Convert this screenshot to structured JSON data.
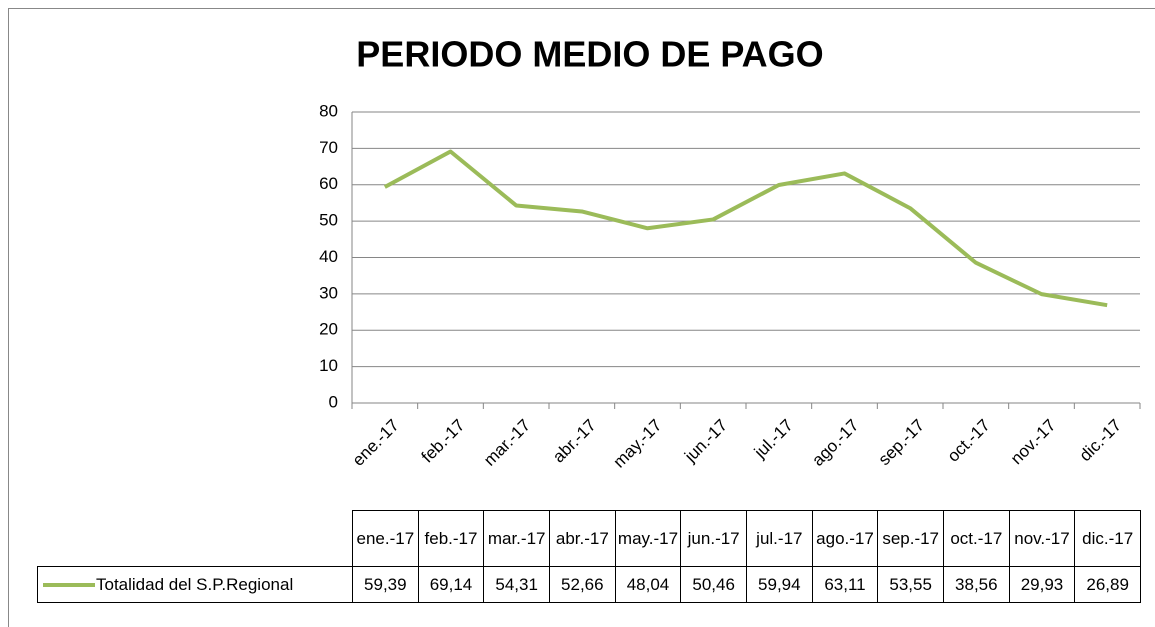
{
  "chart_data": {
    "type": "line",
    "title": "PERIODO MEDIO DE PAGO",
    "categories": [
      "ene.-17",
      "feb.-17",
      "mar.-17",
      "abr.-17",
      "may.-17",
      "jun.-17",
      "jul.-17",
      "ago.-17",
      "sep.-17",
      "oct.-17",
      "nov.-17",
      "dic.-17"
    ],
    "series": [
      {
        "name": "Totalidad del S.P.Regional",
        "color": "#9bbb59",
        "values": [
          59.39,
          69.14,
          54.31,
          52.66,
          48.04,
          50.46,
          59.94,
          63.11,
          53.55,
          38.56,
          29.93,
          26.89
        ],
        "value_labels": [
          "59,39",
          "69,14",
          "54,31",
          "52,66",
          "48,04",
          "50,46",
          "59,94",
          "63,11",
          "53,55",
          "38,56",
          "29,93",
          "26,89"
        ]
      }
    ],
    "ylim": [
      0,
      80
    ],
    "yticks": [
      0,
      10,
      20,
      30,
      40,
      50,
      60,
      70,
      80
    ],
    "grid": true,
    "data_table": true
  }
}
